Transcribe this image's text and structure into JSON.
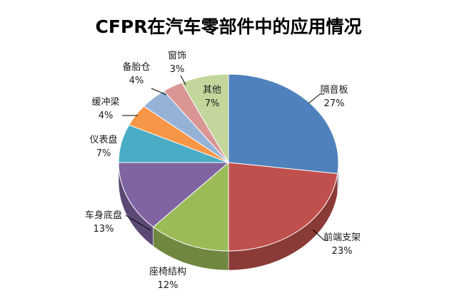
{
  "chart_data": {
    "type": "pie",
    "title": "CFPR在汽车零部件中的应用情况",
    "style": "3d",
    "legend": "none",
    "slices": [
      {
        "name": "隔音板",
        "value": 27,
        "label": "27%",
        "color": "#4F81BD"
      },
      {
        "name": "前端支架",
        "value": 23,
        "label": "23%",
        "color": "#C0504D"
      },
      {
        "name": "座椅结构",
        "value": 12,
        "label": "12%",
        "color": "#9BBB59"
      },
      {
        "name": "车身底盘",
        "value": 13,
        "label": "13%",
        "color": "#8064A2"
      },
      {
        "name": "仪表盘",
        "value": 7,
        "label": "7%",
        "color": "#4BACC6"
      },
      {
        "name": "缓冲梁",
        "value": 4,
        "label": "4%",
        "color": "#F79646"
      },
      {
        "name": "备胎仓",
        "value": 4,
        "label": "4%",
        "color": "#95B3D7"
      },
      {
        "name": "窗饰",
        "value": 3,
        "label": "3%",
        "color": "#D99694"
      },
      {
        "name": "其他",
        "value": 7,
        "label": "7%",
        "color": "#C3D69B"
      }
    ]
  }
}
